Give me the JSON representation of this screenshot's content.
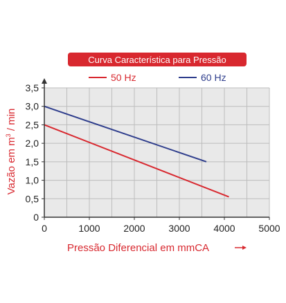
{
  "colors": {
    "title_bg": "#d8282f",
    "title_text": "#ffffff",
    "series_50": "#d8282f",
    "series_60": "#2e3d8c",
    "axis_label": "#d8282f",
    "grid": "#bdbdbd",
    "plot_bg": "#e9e9e9",
    "axis": "#333333"
  },
  "chart_data": {
    "type": "line",
    "title": "Curva Característica para Pressão",
    "xlabel": "Pressão Diferencial em mmCA",
    "ylabel_parts": {
      "before": "Vazão em m",
      "sup": "3",
      "after": " / min"
    },
    "xlim": [
      0,
      5000
    ],
    "ylim": [
      0,
      3.5
    ],
    "x_ticks": [
      0,
      1000,
      2000,
      3000,
      4000,
      5000
    ],
    "x_tick_labels": [
      "0",
      "1000",
      "2000",
      "3000",
      "4000",
      "5000"
    ],
    "x_minor_step": 500,
    "y_ticks": [
      0,
      0.5,
      1.0,
      1.5,
      2.0,
      2.5,
      3.0,
      3.5
    ],
    "y_tick_labels": [
      "0",
      "0,5",
      "1,0",
      "1,5",
      "2,0",
      "2,5",
      "3,0",
      "3,5"
    ],
    "grid": true,
    "legend_position": "top",
    "series": [
      {
        "name": "50 Hz",
        "color": "#d8282f",
        "x": [
          0,
          4100
        ],
        "y": [
          2.5,
          0.55
        ]
      },
      {
        "name": "60 Hz",
        "color": "#2e3d8c",
        "x": [
          0,
          3600
        ],
        "y": [
          3.0,
          1.5
        ]
      }
    ]
  }
}
